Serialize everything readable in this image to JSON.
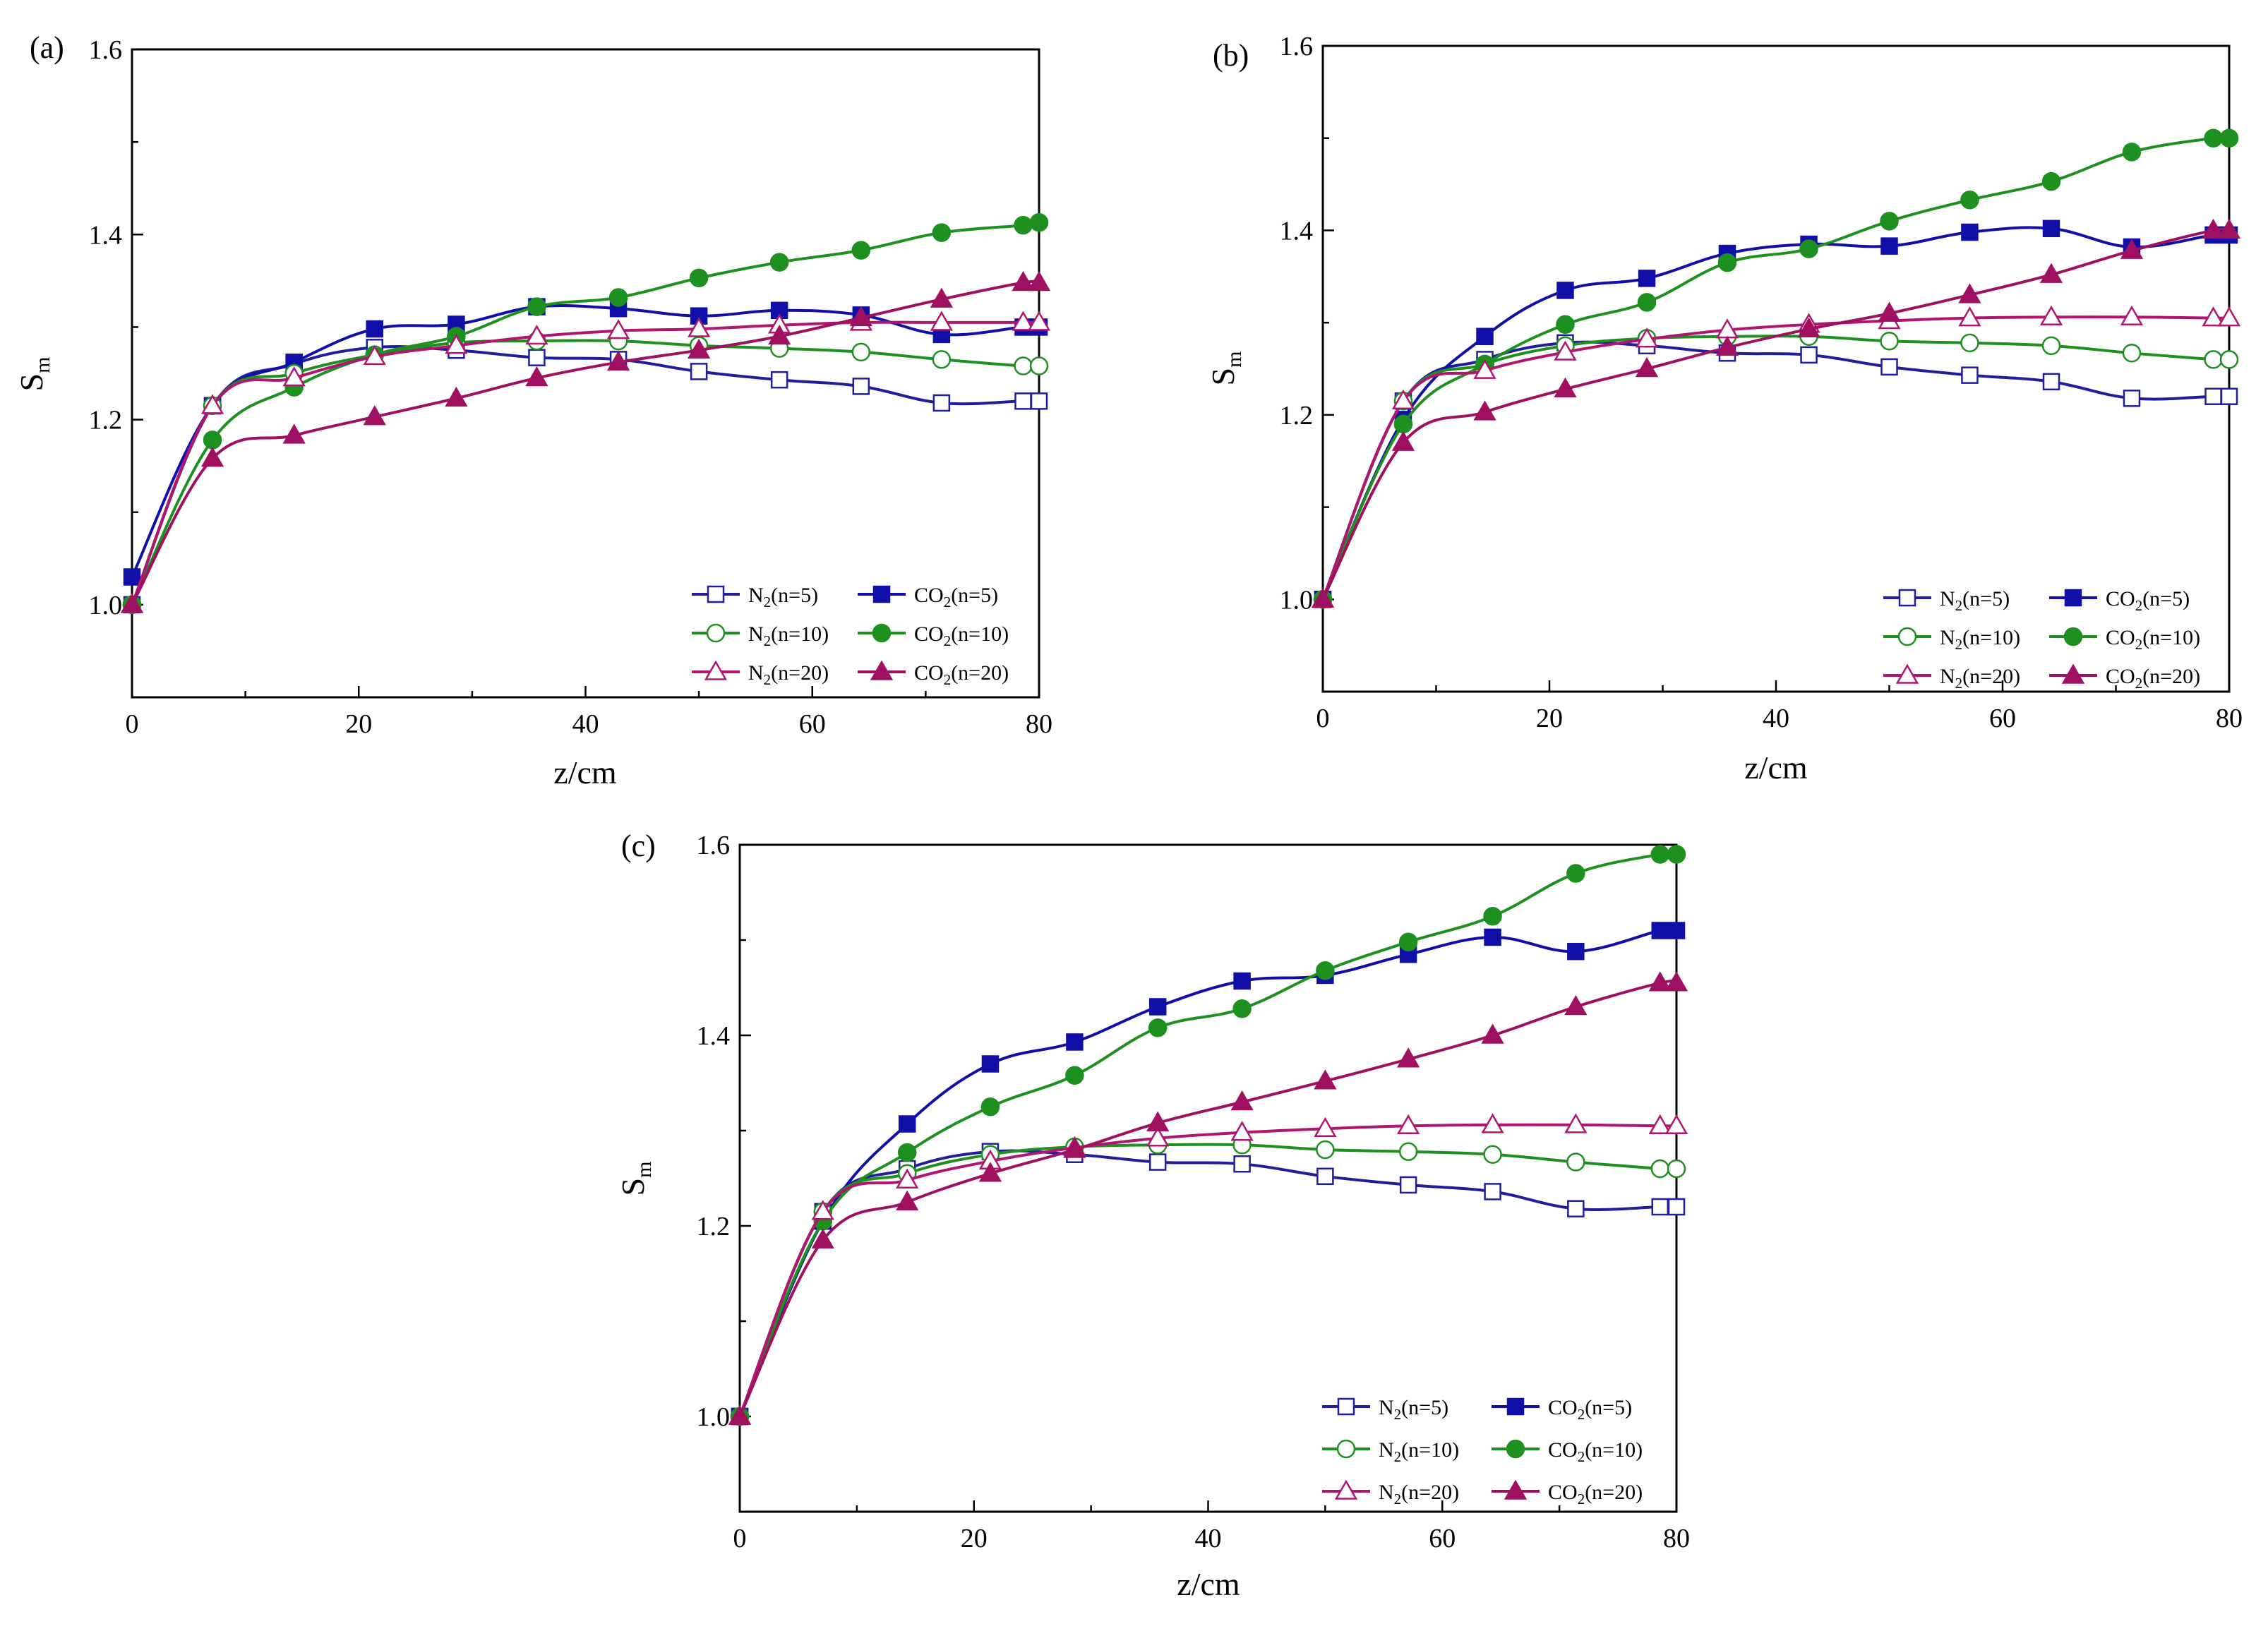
{
  "figure": {
    "colors": {
      "N2_n5": "#1f1f9e",
      "CO2_n5": "#1010a8",
      "N2_n10": "#1e9020",
      "CO2_n10": "#1e9020",
      "N2_n20": "#b01670",
      "CO2_n20": "#a01060"
    }
  },
  "chart_data": [
    {
      "panel": "(a)",
      "type": "line",
      "xlabel": "z/cm",
      "ylabel_main": "S",
      "ylabel_sub": "m",
      "xlim": [
        0,
        80
      ],
      "ylim": [
        0.9,
        1.6
      ],
      "xticks": [
        "0",
        "20",
        "40",
        "60",
        "80"
      ],
      "yticks": [
        "1.0",
        "1.2",
        "1.4",
        "1.6"
      ],
      "series": [
        {
          "key": "N2_n5",
          "gas": "N",
          "sub": "2",
          "n_text": "(n=5)",
          "marker": "square",
          "filled": false,
          "x": [
            0,
            7.1,
            14.3,
            21.4,
            28.6,
            35.7,
            42.9,
            50.0,
            57.1,
            64.3,
            71.4,
            78.6,
            80
          ],
          "y": [
            1.0,
            1.215,
            1.26,
            1.278,
            1.275,
            1.267,
            1.265,
            1.252,
            1.243,
            1.236,
            1.218,
            1.22,
            1.22
          ]
        },
        {
          "key": "CO2_n5",
          "gas": "CO",
          "sub": "2",
          "n_text": "(n=5)",
          "marker": "square",
          "filled": true,
          "x": [
            0,
            7.1,
            14.3,
            21.4,
            28.6,
            35.7,
            42.9,
            50.0,
            57.1,
            64.3,
            71.4,
            78.6,
            80
          ],
          "y": [
            1.03,
            1.215,
            1.262,
            1.298,
            1.303,
            1.322,
            1.32,
            1.312,
            1.318,
            1.313,
            1.292,
            1.3,
            1.3
          ]
        },
        {
          "key": "N2_n10",
          "gas": "N",
          "sub": "2",
          "n_text": "(n=10)",
          "marker": "circle",
          "filled": false,
          "x": [
            0,
            7.1,
            14.3,
            21.4,
            28.6,
            35.7,
            42.9,
            50.0,
            57.1,
            64.3,
            71.4,
            78.6,
            80
          ],
          "y": [
            1.0,
            1.215,
            1.25,
            1.27,
            1.283,
            1.285,
            1.285,
            1.28,
            1.277,
            1.273,
            1.265,
            1.258,
            1.258
          ]
        },
        {
          "key": "CO2_n10",
          "gas": "CO",
          "sub": "2",
          "n_text": "(n=10)",
          "marker": "circle",
          "filled": true,
          "x": [
            0,
            7.1,
            14.3,
            21.4,
            28.6,
            35.7,
            42.9,
            50.0,
            57.1,
            64.3,
            71.4,
            78.6,
            80
          ],
          "y": [
            1.0,
            1.178,
            1.235,
            1.27,
            1.29,
            1.322,
            1.332,
            1.353,
            1.37,
            1.383,
            1.402,
            1.41,
            1.413
          ]
        },
        {
          "key": "N2_n20",
          "gas": "N",
          "sub": "2",
          "n_text": "(n=20)",
          "marker": "triangle",
          "filled": false,
          "x": [
            0,
            7.1,
            14.3,
            21.4,
            28.6,
            35.7,
            42.9,
            50.0,
            57.1,
            64.3,
            71.4,
            78.6,
            80
          ],
          "y": [
            1.0,
            1.215,
            1.245,
            1.268,
            1.28,
            1.29,
            1.296,
            1.298,
            1.302,
            1.305,
            1.305,
            1.305,
            1.305
          ]
        },
        {
          "key": "CO2_n20",
          "gas": "CO",
          "sub": "2",
          "n_text": "(n=20)",
          "marker": "triangle",
          "filled": true,
          "x": [
            0,
            7.1,
            14.3,
            21.4,
            28.6,
            35.7,
            42.9,
            50.0,
            57.1,
            64.3,
            71.4,
            78.6,
            80
          ],
          "y": [
            1.0,
            1.158,
            1.183,
            1.203,
            1.223,
            1.245,
            1.262,
            1.275,
            1.29,
            1.31,
            1.33,
            1.348,
            1.348
          ]
        }
      ]
    },
    {
      "panel": "(b)",
      "type": "line",
      "xlabel": "z/cm",
      "ylabel_main": "S",
      "ylabel_sub": "m",
      "xlim": [
        0,
        80
      ],
      "ylim": [
        0.9,
        1.6
      ],
      "xticks": [
        "0",
        "20",
        "40",
        "60",
        "80"
      ],
      "yticks": [
        "1.0",
        "1.2",
        "1.4",
        "1.6"
      ],
      "series": [
        {
          "key": "N2_n5",
          "gas": "N",
          "sub": "2",
          "n_text": "(n=5)",
          "marker": "square",
          "filled": false,
          "x": [
            0,
            7.1,
            14.3,
            21.4,
            28.6,
            35.7,
            42.9,
            50.0,
            57.1,
            64.3,
            71.4,
            78.6,
            80
          ],
          "y": [
            1.0,
            1.215,
            1.26,
            1.278,
            1.275,
            1.267,
            1.265,
            1.252,
            1.243,
            1.236,
            1.218,
            1.22,
            1.22
          ]
        },
        {
          "key": "CO2_n5",
          "gas": "CO",
          "sub": "2",
          "n_text": "(n=5)",
          "marker": "square",
          "filled": true,
          "x": [
            0,
            7.1,
            14.3,
            21.4,
            28.6,
            35.7,
            42.9,
            50.0,
            57.1,
            64.3,
            71.4,
            78.6,
            80
          ],
          "y": [
            1.0,
            1.195,
            1.285,
            1.335,
            1.348,
            1.375,
            1.385,
            1.383,
            1.398,
            1.402,
            1.382,
            1.395,
            1.395
          ]
        },
        {
          "key": "N2_n10",
          "gas": "N",
          "sub": "2",
          "n_text": "(n=10)",
          "marker": "circle",
          "filled": false,
          "x": [
            0,
            7.1,
            14.3,
            21.4,
            28.6,
            35.7,
            42.9,
            50.0,
            57.1,
            64.3,
            71.4,
            78.6,
            80
          ],
          "y": [
            1.0,
            1.215,
            1.255,
            1.275,
            1.283,
            1.285,
            1.285,
            1.28,
            1.278,
            1.275,
            1.267,
            1.26,
            1.26
          ]
        },
        {
          "key": "CO2_n10",
          "gas": "CO",
          "sub": "2",
          "n_text": "(n=10)",
          "marker": "circle",
          "filled": true,
          "x": [
            0,
            7.1,
            14.3,
            21.4,
            28.6,
            35.7,
            42.9,
            50.0,
            57.1,
            64.3,
            71.4,
            78.6,
            80
          ],
          "y": [
            1.0,
            1.19,
            1.255,
            1.298,
            1.322,
            1.365,
            1.38,
            1.41,
            1.433,
            1.453,
            1.485,
            1.5,
            1.5
          ]
        },
        {
          "key": "N2_n20",
          "gas": "N",
          "sub": "2",
          "n_text": "(n=20)",
          "marker": "triangle",
          "filled": false,
          "x": [
            0,
            7.1,
            14.3,
            21.4,
            28.6,
            35.7,
            42.9,
            50.0,
            57.1,
            64.3,
            71.4,
            78.6,
            80
          ],
          "y": [
            1.0,
            1.215,
            1.248,
            1.268,
            1.282,
            1.292,
            1.298,
            1.302,
            1.305,
            1.306,
            1.306,
            1.305,
            1.305
          ]
        },
        {
          "key": "CO2_n20",
          "gas": "CO",
          "sub": "2",
          "n_text": "(n=20)",
          "marker": "triangle",
          "filled": true,
          "x": [
            0,
            7.1,
            14.3,
            21.4,
            28.6,
            35.7,
            42.9,
            50.0,
            57.1,
            64.3,
            71.4,
            78.6,
            80
          ],
          "y": [
            1.0,
            1.17,
            1.203,
            1.228,
            1.25,
            1.273,
            1.293,
            1.31,
            1.33,
            1.352,
            1.378,
            1.4,
            1.4
          ]
        }
      ]
    },
    {
      "panel": "(c)",
      "type": "line",
      "xlabel": "z/cm",
      "ylabel_main": "S",
      "ylabel_sub": "m",
      "xlim": [
        0,
        80
      ],
      "ylim": [
        0.9,
        1.6
      ],
      "xticks": [
        "0",
        "20",
        "40",
        "60",
        "80"
      ],
      "yticks": [
        "1.0",
        "1.2",
        "1.4",
        "1.6"
      ],
      "series": [
        {
          "key": "N2_n5",
          "gas": "N",
          "sub": "2",
          "n_text": "(n=5)",
          "marker": "square",
          "filled": false,
          "x": [
            0,
            7.1,
            14.3,
            21.4,
            28.6,
            35.7,
            42.9,
            50.0,
            57.1,
            64.3,
            71.4,
            78.6,
            80
          ],
          "y": [
            1.0,
            1.215,
            1.26,
            1.278,
            1.275,
            1.267,
            1.265,
            1.252,
            1.243,
            1.236,
            1.218,
            1.22,
            1.22
          ]
        },
        {
          "key": "CO2_n5",
          "gas": "CO",
          "sub": "2",
          "n_text": "(n=5)",
          "marker": "square",
          "filled": true,
          "x": [
            0,
            7.1,
            14.3,
            21.4,
            28.6,
            35.7,
            42.9,
            50.0,
            57.1,
            64.3,
            71.4,
            78.6,
            80
          ],
          "y": [
            1.0,
            1.205,
            1.307,
            1.37,
            1.393,
            1.43,
            1.457,
            1.463,
            1.485,
            1.503,
            1.488,
            1.51,
            1.51
          ]
        },
        {
          "key": "N2_n10",
          "gas": "N",
          "sub": "2",
          "n_text": "(n=10)",
          "marker": "circle",
          "filled": false,
          "x": [
            0,
            7.1,
            14.3,
            21.4,
            28.6,
            35.7,
            42.9,
            50.0,
            57.1,
            64.3,
            71.4,
            78.6,
            80
          ],
          "y": [
            1.0,
            1.215,
            1.255,
            1.275,
            1.283,
            1.285,
            1.285,
            1.28,
            1.278,
            1.275,
            1.267,
            1.26,
            1.26
          ]
        },
        {
          "key": "CO2_n10",
          "gas": "CO",
          "sub": "2",
          "n_text": "(n=10)",
          "marker": "circle",
          "filled": true,
          "x": [
            0,
            7.1,
            14.3,
            21.4,
            28.6,
            35.7,
            42.9,
            50.0,
            57.1,
            64.3,
            71.4,
            78.6,
            80
          ],
          "y": [
            1.0,
            1.205,
            1.277,
            1.325,
            1.358,
            1.408,
            1.428,
            1.468,
            1.498,
            1.525,
            1.57,
            1.59,
            1.59
          ]
        },
        {
          "key": "N2_n20",
          "gas": "N",
          "sub": "2",
          "n_text": "(n=20)",
          "marker": "triangle",
          "filled": false,
          "x": [
            0,
            7.1,
            14.3,
            21.4,
            28.6,
            35.7,
            42.9,
            50.0,
            57.1,
            64.3,
            71.4,
            78.6,
            80
          ],
          "y": [
            1.0,
            1.215,
            1.248,
            1.268,
            1.282,
            1.292,
            1.298,
            1.302,
            1.305,
            1.306,
            1.306,
            1.305,
            1.305
          ]
        },
        {
          "key": "CO2_n20",
          "gas": "CO",
          "sub": "2",
          "n_text": "(n=20)",
          "marker": "triangle",
          "filled": true,
          "x": [
            0,
            7.1,
            14.3,
            21.4,
            28.6,
            35.7,
            42.9,
            50.0,
            57.1,
            64.3,
            71.4,
            78.6,
            80
          ],
          "y": [
            1.0,
            1.185,
            1.225,
            1.255,
            1.28,
            1.308,
            1.33,
            1.352,
            1.375,
            1.4,
            1.43,
            1.455,
            1.455
          ]
        }
      ]
    }
  ]
}
